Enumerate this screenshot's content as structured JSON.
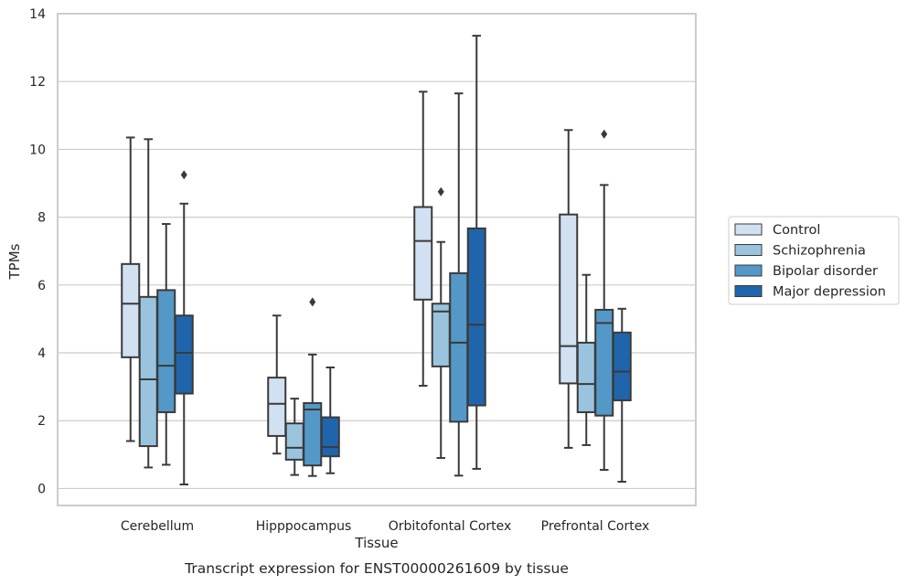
{
  "chart_data": {
    "type": "box",
    "title": "",
    "caption": "Transcript expression for ENST00000261609 by tissue",
    "xlabel": "Tissue",
    "ylabel": "TPMs",
    "ylim": [
      -0.5,
      14
    ],
    "yticks": [
      0,
      2,
      4,
      6,
      8,
      10,
      12,
      14
    ],
    "categories": [
      "Cerebellum",
      "Hipppocampus",
      "Orbitofontal Cortex",
      "Prefrontal Cortex"
    ],
    "grid": "horizontal",
    "legend_position": "right",
    "series": [
      {
        "name": "Control",
        "color": "#d1e1f2",
        "boxes": [
          {
            "min": 1.4,
            "q1": 3.87,
            "median": 5.45,
            "q3": 6.62,
            "max": 10.35,
            "outliers": []
          },
          {
            "min": 1.03,
            "q1": 1.55,
            "median": 2.5,
            "q3": 3.27,
            "max": 5.1,
            "outliers": []
          },
          {
            "min": 3.03,
            "q1": 5.57,
            "median": 7.3,
            "q3": 8.3,
            "max": 11.7,
            "outliers": []
          },
          {
            "min": 1.2,
            "q1": 3.1,
            "median": 4.2,
            "q3": 8.08,
            "max": 10.57,
            "outliers": []
          }
        ]
      },
      {
        "name": "Schizophrenia",
        "color": "#9ac4de",
        "boxes": [
          {
            "min": 0.62,
            "q1": 1.25,
            "median": 3.22,
            "q3": 5.65,
            "max": 10.3,
            "outliers": []
          },
          {
            "min": 0.4,
            "q1": 0.85,
            "median": 1.2,
            "q3": 1.92,
            "max": 2.65,
            "outliers": []
          },
          {
            "min": 0.9,
            "q1": 3.6,
            "median": 5.22,
            "q3": 5.45,
            "max": 7.27,
            "outliers": [
              8.75
            ]
          },
          {
            "min": 1.28,
            "q1": 2.25,
            "median": 3.08,
            "q3": 4.3,
            "max": 6.3,
            "outliers": []
          }
        ]
      },
      {
        "name": "Bipolar disorder",
        "color": "#5498c8",
        "boxes": [
          {
            "min": 0.7,
            "q1": 2.25,
            "median": 3.62,
            "q3": 5.85,
            "max": 7.8,
            "outliers": []
          },
          {
            "min": 0.37,
            "q1": 0.68,
            "median": 2.33,
            "q3": 2.52,
            "max": 3.95,
            "outliers": [
              5.5
            ]
          },
          {
            "min": 0.38,
            "q1": 1.97,
            "median": 4.3,
            "q3": 6.35,
            "max": 11.65,
            "outliers": []
          },
          {
            "min": 0.55,
            "q1": 2.15,
            "median": 4.88,
            "q3": 5.27,
            "max": 8.95,
            "outliers": [
              10.45
            ]
          }
        ]
      },
      {
        "name": "Major depression",
        "color": "#2065ab",
        "boxes": [
          {
            "min": 0.12,
            "q1": 2.8,
            "median": 4.0,
            "q3": 5.1,
            "max": 8.4,
            "outliers": [
              9.25
            ]
          },
          {
            "min": 0.45,
            "q1": 0.95,
            "median": 1.22,
            "q3": 2.1,
            "max": 3.57,
            "outliers": []
          },
          {
            "min": 0.58,
            "q1": 2.45,
            "median": 4.83,
            "q3": 7.67,
            "max": 13.35,
            "outliers": []
          },
          {
            "min": 0.2,
            "q1": 2.6,
            "median": 3.45,
            "q3": 4.6,
            "max": 5.3,
            "outliers": []
          }
        ]
      }
    ]
  }
}
